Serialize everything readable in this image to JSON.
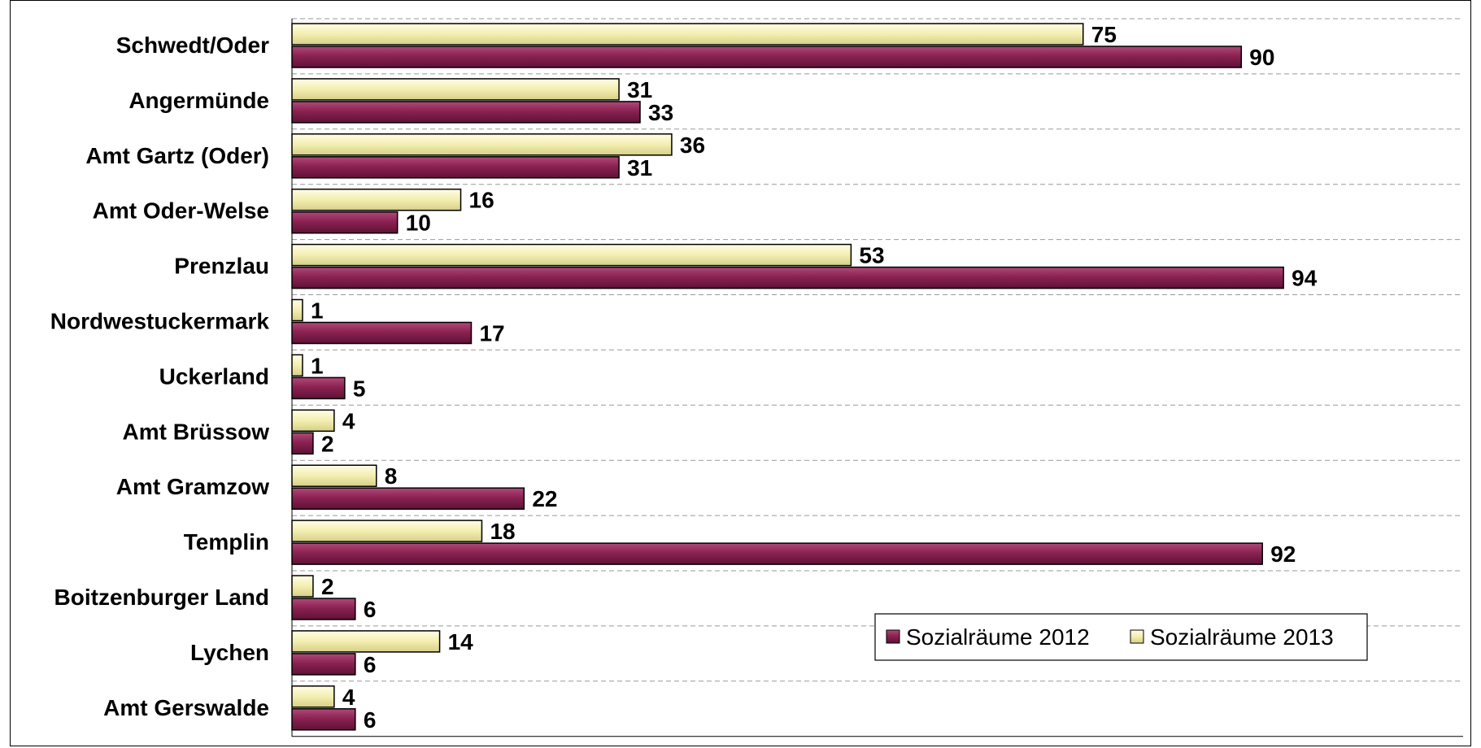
{
  "chart_data": {
    "type": "bar",
    "orientation": "horizontal",
    "categories": [
      "Schwedt/Oder",
      "Angermünde",
      "Amt Gartz (Oder)",
      "Amt Oder-Welse",
      "Prenzlau",
      "Nordwestuckermark",
      "Uckerland",
      "Amt Brüssow",
      "Amt Gramzow",
      "Templin",
      "Boitzenburger Land",
      "Lychen",
      "Amt Gerswalde"
    ],
    "series": [
      {
        "name": "Sozialräume 2012",
        "color": "#8b2252",
        "values": [
          90,
          33,
          31,
          10,
          94,
          17,
          5,
          2,
          22,
          92,
          6,
          6,
          6
        ]
      },
      {
        "name": "Sozialräume 2013",
        "color": "#f5f0b4",
        "values": [
          75,
          31,
          36,
          16,
          53,
          1,
          1,
          4,
          8,
          18,
          2,
          14,
          4
        ]
      }
    ],
    "xlim": [
      0,
      100
    ],
    "grid": "horizontal dashed",
    "legend_position": "bottom-right",
    "title": "",
    "xlabel": "",
    "ylabel": ""
  }
}
